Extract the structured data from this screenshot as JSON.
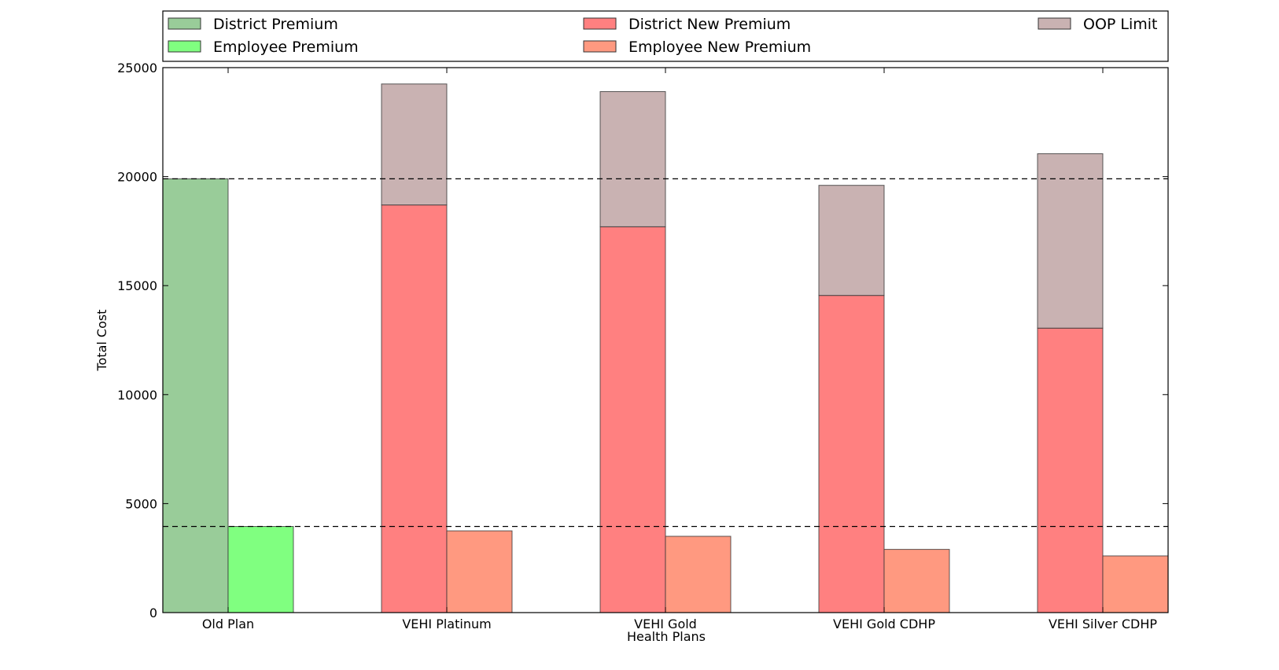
{
  "chart_data": {
    "type": "bar",
    "xlabel": "Health Plans",
    "ylabel": "Total Cost",
    "ylim": [
      0,
      25000
    ],
    "yticks": [
      0,
      5000,
      10000,
      15000,
      20000,
      25000
    ],
    "categories": [
      "Old Plan",
      "VEHI Platinum",
      "VEHI Gold",
      "VEHI Gold CDHP",
      "VEHI Silver CDHP"
    ],
    "series": [
      {
        "name": "District Premium",
        "color": "#99cc99",
        "values": [
          19900,
          null,
          null,
          null,
          null
        ]
      },
      {
        "name": "Employee Premium",
        "color": "#80ff80",
        "values": [
          3950,
          null,
          null,
          null,
          null
        ]
      },
      {
        "name": "District New Premium",
        "color": "#ff8080",
        "values": [
          null,
          18700,
          17700,
          14550,
          13050
        ]
      },
      {
        "name": "Employee New Premium",
        "color": "#ff9980",
        "values": [
          null,
          3750,
          3500,
          2900,
          2600
        ]
      },
      {
        "name": "OOP Limit",
        "color": "#c9b2b2",
        "stacked_on": "District New Premium",
        "values": [
          null,
          5550,
          6200,
          5050,
          8000
        ]
      }
    ],
    "reference_lines": [
      19900,
      3950
    ],
    "grid": false,
    "legend": {
      "placement": "top",
      "entries": [
        {
          "label": "District Premium",
          "color": "#99cc99"
        },
        {
          "label": "District New Premium",
          "color": "#ff8080"
        },
        {
          "label": "OOP Limit",
          "color": "#c9b2b2"
        },
        {
          "label": "Employee Premium",
          "color": "#80ff80"
        },
        {
          "label": "Employee New Premium",
          "color": "#ff9980"
        }
      ]
    }
  }
}
